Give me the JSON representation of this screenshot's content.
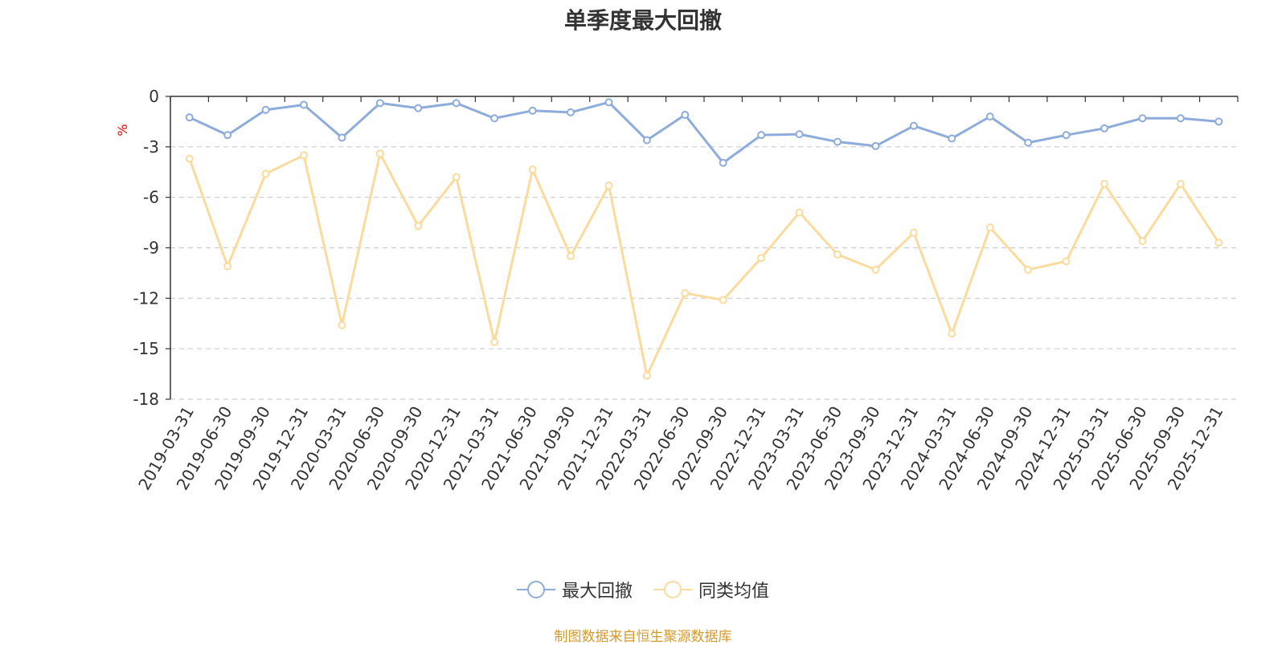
{
  "chart_data": {
    "type": "line",
    "title": "单季度最大回撤",
    "ylabel": "%",
    "ylim": [
      -18,
      0
    ],
    "yticks": [
      "0",
      "-3",
      "-6",
      "-9",
      "-12",
      "-15",
      "-18"
    ],
    "grid": true,
    "legend_position": "bottom",
    "categories": [
      "2019-03-31",
      "2019-06-30",
      "2019-09-30",
      "2019-12-31",
      "2020-03-31",
      "2020-06-30",
      "2020-09-30",
      "2020-12-31",
      "2021-03-31",
      "2021-06-30",
      "2021-09-30",
      "2021-12-31",
      "2022-03-31",
      "2022-06-30",
      "2022-09-30",
      "2022-12-31",
      "2023-03-31",
      "2023-06-30",
      "2023-09-30",
      "2023-12-31",
      "2024-03-31",
      "2024-06-30",
      "2024-09-30",
      "2024-12-31",
      "2025-03-31",
      "2025-06-30",
      "2025-09-30",
      "2025-12-31"
    ],
    "series": [
      {
        "name": "最大回撤",
        "color": "#8eacdb",
        "values": [
          -1.25,
          -2.3,
          -0.8,
          -0.5,
          -2.45,
          -0.4,
          -0.7,
          -0.4,
          -1.3,
          -0.85,
          -0.95,
          -0.35,
          -2.6,
          -1.1,
          -3.95,
          -2.3,
          -2.25,
          -2.7,
          -2.95,
          -1.75,
          -2.5,
          -1.2,
          -2.75,
          -2.3,
          -1.9,
          -1.3,
          -1.3,
          -1.5
        ]
      },
      {
        "name": "同类均值",
        "color": "#fbdb9d",
        "values": [
          -3.7,
          -10.1,
          -4.6,
          -3.5,
          -13.6,
          -3.4,
          -7.7,
          -4.8,
          -14.6,
          -4.35,
          -9.5,
          -5.3,
          -16.6,
          -11.7,
          -12.1,
          -9.6,
          -6.9,
          -9.4,
          -10.3,
          -8.1,
          -14.1,
          -7.8,
          -10.3,
          -9.8,
          -5.2,
          -8.6,
          -5.2,
          -8.7
        ]
      }
    ]
  },
  "footer": {
    "source_text": "制图数据来自恒生聚源数据库",
    "color": "#d49a2c"
  },
  "unit_color": "#ff0000"
}
